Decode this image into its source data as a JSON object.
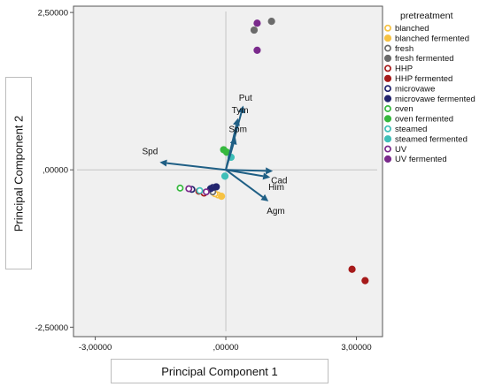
{
  "chart_data": {
    "type": "scatter",
    "title": "",
    "xlabel": "Principal Component 1",
    "ylabel": "Principal Component 2",
    "xlim": [
      -3.5,
      3.6
    ],
    "ylim": [
      -2.65,
      2.6
    ],
    "x_ticks": [
      {
        "value": -3,
        "label": "-3,00000"
      },
      {
        "value": 0,
        "label": ",00000"
      },
      {
        "value": 3,
        "label": "3,00000"
      }
    ],
    "y_ticks": [
      {
        "value": 2.5,
        "label": "2,50000"
      },
      {
        "value": 0,
        "label": ",00000"
      },
      {
        "value": -2.5,
        "label": "-2,50000"
      }
    ],
    "reference_lines": {
      "x": 0,
      "y": 0
    },
    "legend": {
      "title": "pretreatment",
      "position": "right",
      "entries": [
        {
          "name": "blanched",
          "color": "#f6c243",
          "filled": false
        },
        {
          "name": "blanched fermented",
          "color": "#f6c243",
          "filled": true
        },
        {
          "name": "fresh",
          "color": "#6b6b6b",
          "filled": false
        },
        {
          "name": "fresh fermented",
          "color": "#6b6b6b",
          "filled": true
        },
        {
          "name": "HHP",
          "color": "#a61a1a",
          "filled": false
        },
        {
          "name": "HHP fermented",
          "color": "#a61a1a",
          "filled": true
        },
        {
          "name": "microvawe",
          "color": "#22246e",
          "filled": false
        },
        {
          "name": "microvawe fermented",
          "color": "#22246e",
          "filled": true
        },
        {
          "name": "oven",
          "color": "#36b83e",
          "filled": false
        },
        {
          "name": "oven fermented",
          "color": "#36b83e",
          "filled": true
        },
        {
          "name": "steamed",
          "color": "#3fbfb8",
          "filled": false
        },
        {
          "name": "steamed fermented",
          "color": "#3fbfb8",
          "filled": true
        },
        {
          "name": "UV",
          "color": "#7a2a8c",
          "filled": false
        },
        {
          "name": "UV fermented",
          "color": "#7a2a8c",
          "filled": true
        }
      ]
    },
    "series": [
      {
        "name": "blanched",
        "points": [
          [
            -0.18,
            -0.4
          ],
          [
            -0.25,
            -0.38
          ]
        ]
      },
      {
        "name": "blanched fermented",
        "points": [
          [
            -0.1,
            -0.42
          ]
        ]
      },
      {
        "name": "fresh",
        "points": [
          [
            -0.3,
            -0.35
          ]
        ]
      },
      {
        "name": "fresh fermented",
        "points": [
          [
            0.65,
            2.22
          ],
          [
            1.05,
            2.36
          ]
        ]
      },
      {
        "name": "HHP",
        "points": [
          [
            -0.5,
            -0.37
          ],
          [
            -0.62,
            -0.34
          ]
        ]
      },
      {
        "name": "HHP fermented",
        "points": [
          [
            2.9,
            -1.58
          ],
          [
            3.2,
            -1.76
          ]
        ]
      },
      {
        "name": "microvawe",
        "points": [
          [
            -0.78,
            -0.31
          ],
          [
            -0.3,
            -0.28
          ]
        ]
      },
      {
        "name": "microvawe fermented",
        "points": [
          [
            -0.35,
            -0.3
          ],
          [
            -0.22,
            -0.27
          ]
        ]
      },
      {
        "name": "oven",
        "points": [
          [
            -1.05,
            -0.29
          ]
        ]
      },
      {
        "name": "oven fermented",
        "points": [
          [
            -0.05,
            0.32
          ],
          [
            0.02,
            0.28
          ]
        ]
      },
      {
        "name": "steamed",
        "points": [
          [
            -0.6,
            -0.33
          ]
        ]
      },
      {
        "name": "steamed fermented",
        "points": [
          [
            -0.02,
            -0.1
          ],
          [
            0.12,
            0.2
          ]
        ]
      },
      {
        "name": "UV",
        "points": [
          [
            -0.85,
            -0.3
          ],
          [
            -0.45,
            -0.35
          ]
        ]
      },
      {
        "name": "UV fermented",
        "points": [
          [
            0.72,
            2.33
          ],
          [
            0.72,
            1.9
          ]
        ]
      }
    ],
    "loadings": [
      {
        "label": "Put",
        "x": 0.4,
        "y": 1.02
      },
      {
        "label": "Tym",
        "x": 0.28,
        "y": 0.82
      },
      {
        "label": "Spm",
        "x": 0.22,
        "y": 0.52
      },
      {
        "label": "Spd",
        "x": -1.52,
        "y": 0.12
      },
      {
        "label": "Cad",
        "x": 1.08,
        "y": -0.02
      },
      {
        "label": "Him",
        "x": 1.02,
        "y": -0.12
      },
      {
        "label": "Agm",
        "x": 0.98,
        "y": -0.5
      }
    ]
  }
}
